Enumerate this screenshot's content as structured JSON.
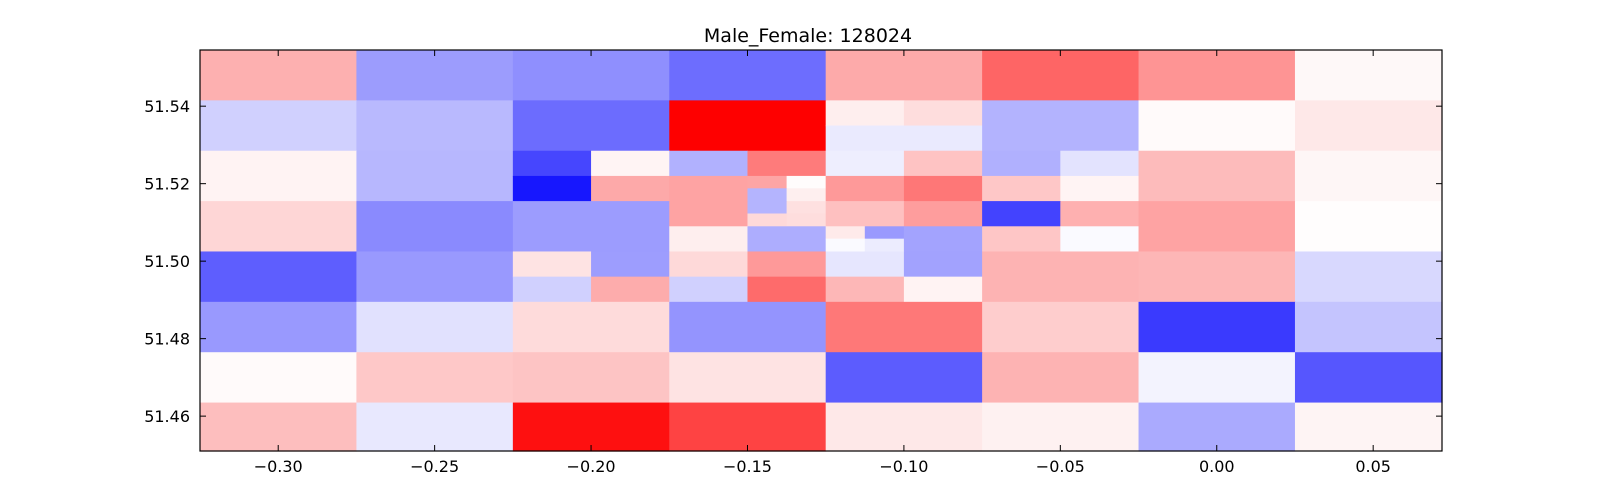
{
  "chart_data": {
    "type": "heatmap",
    "title": "Male_Female: 128024",
    "xlabel": "",
    "ylabel": "",
    "xlim": [
      -0.325,
      0.072
    ],
    "ylim": [
      51.451,
      51.5545
    ],
    "x_ticks": [
      -0.3,
      -0.25,
      -0.2,
      -0.15,
      -0.1,
      -0.05,
      0.0,
      0.05
    ],
    "x_tick_labels": [
      "−0.30",
      "−0.25",
      "−0.20",
      "−0.15",
      "−0.10",
      "−0.05",
      "0.00",
      "0.05"
    ],
    "y_ticks": [
      51.46,
      51.48,
      51.5,
      51.52,
      51.54
    ],
    "y_tick_labels": [
      "51.46",
      "51.48",
      "51.50",
      "51.52",
      "51.54"
    ],
    "colormap": "bwr",
    "cells": [
      {
        "x0": -0.325,
        "x1": -0.275,
        "y0": 51.5415,
        "y1": 51.5545,
        "color": "#fdb0b0"
      },
      {
        "x0": -0.275,
        "x1": -0.225,
        "y0": 51.5415,
        "y1": 51.5545,
        "color": "#9c9cfd"
      },
      {
        "x0": -0.225,
        "x1": -0.175,
        "y0": 51.5415,
        "y1": 51.5545,
        "color": "#8f8ffe"
      },
      {
        "x0": -0.175,
        "x1": -0.125,
        "y0": 51.5415,
        "y1": 51.5545,
        "color": "#6d6dfe"
      },
      {
        "x0": -0.125,
        "x1": -0.075,
        "y0": 51.5415,
        "y1": 51.5545,
        "color": "#fdaaaa"
      },
      {
        "x0": -0.075,
        "x1": -0.025,
        "y0": 51.5415,
        "y1": 51.5545,
        "color": "#fe6565"
      },
      {
        "x0": -0.025,
        "x1": 0.025,
        "y0": 51.5415,
        "y1": 51.5545,
        "color": "#fe9494"
      },
      {
        "x0": 0.025,
        "x1": 0.072,
        "y0": 51.5415,
        "y1": 51.5545,
        "color": "#fef8f8"
      },
      {
        "x0": -0.325,
        "x1": -0.275,
        "y0": 51.5285,
        "y1": 51.5415,
        "color": "#d0d0fe"
      },
      {
        "x0": -0.275,
        "x1": -0.225,
        "y0": 51.5285,
        "y1": 51.5415,
        "color": "#b9b9fe"
      },
      {
        "x0": -0.225,
        "x1": -0.175,
        "y0": 51.5285,
        "y1": 51.5415,
        "color": "#6c6cfe"
      },
      {
        "x0": -0.175,
        "x1": -0.125,
        "y0": 51.5285,
        "y1": 51.5415,
        "color": "#fe0000"
      },
      {
        "x0": -0.125,
        "x1": -0.1,
        "y0": 51.535,
        "y1": 51.5415,
        "color": "#feeeee"
      },
      {
        "x0": -0.1,
        "x1": -0.075,
        "y0": 51.535,
        "y1": 51.5415,
        "color": "#fedddd"
      },
      {
        "x0": -0.125,
        "x1": -0.075,
        "y0": 51.5285,
        "y1": 51.535,
        "color": "#eaeafe"
      },
      {
        "x0": -0.075,
        "x1": -0.025,
        "y0": 51.5285,
        "y1": 51.5415,
        "color": "#b3b3fe"
      },
      {
        "x0": -0.025,
        "x1": 0.025,
        "y0": 51.5285,
        "y1": 51.5415,
        "color": "#fffafa"
      },
      {
        "x0": 0.025,
        "x1": 0.072,
        "y0": 51.5285,
        "y1": 51.5415,
        "color": "#fee8e8"
      },
      {
        "x0": -0.325,
        "x1": -0.275,
        "y0": 51.5155,
        "y1": 51.5285,
        "color": "#fff3f3"
      },
      {
        "x0": -0.275,
        "x1": -0.225,
        "y0": 51.5155,
        "y1": 51.5285,
        "color": "#b7b7fe"
      },
      {
        "x0": -0.225,
        "x1": -0.2,
        "y0": 51.522,
        "y1": 51.5285,
        "color": "#4646fe"
      },
      {
        "x0": -0.2,
        "x1": -0.175,
        "y0": 51.522,
        "y1": 51.5285,
        "color": "#fff4f4"
      },
      {
        "x0": -0.225,
        "x1": -0.2,
        "y0": 51.5155,
        "y1": 51.522,
        "color": "#1717fe"
      },
      {
        "x0": -0.2,
        "x1": -0.175,
        "y0": 51.5155,
        "y1": 51.522,
        "color": "#fda9a9"
      },
      {
        "x0": -0.175,
        "x1": -0.15,
        "y0": 51.522,
        "y1": 51.5285,
        "color": "#b1b1fe"
      },
      {
        "x0": -0.15,
        "x1": -0.125,
        "y0": 51.522,
        "y1": 51.5285,
        "color": "#fe7b7b"
      },
      {
        "x0": -0.175,
        "x1": -0.15,
        "y0": 51.5155,
        "y1": 51.522,
        "color": "#fea3a3"
      },
      {
        "x0": -0.15,
        "x1": -0.1375,
        "y0": 51.5188,
        "y1": 51.522,
        "color": "#fda5a5"
      },
      {
        "x0": -0.1375,
        "x1": -0.125,
        "y0": 51.5188,
        "y1": 51.522,
        "color": "#fffcfc"
      },
      {
        "x0": -0.15,
        "x1": -0.1375,
        "y0": 51.5155,
        "y1": 51.5188,
        "color": "#b4b4fe"
      },
      {
        "x0": -0.1375,
        "x1": -0.125,
        "y0": 51.5155,
        "y1": 51.5188,
        "color": "#feefef"
      },
      {
        "x0": -0.125,
        "x1": -0.1,
        "y0": 51.522,
        "y1": 51.5285,
        "color": "#eeeefe"
      },
      {
        "x0": -0.1,
        "x1": -0.075,
        "y0": 51.522,
        "y1": 51.5285,
        "color": "#fec3c3"
      },
      {
        "x0": -0.125,
        "x1": -0.1,
        "y0": 51.5155,
        "y1": 51.522,
        "color": "#fe9999"
      },
      {
        "x0": -0.1,
        "x1": -0.075,
        "y0": 51.5155,
        "y1": 51.522,
        "color": "#fe7777"
      },
      {
        "x0": -0.075,
        "x1": -0.05,
        "y0": 51.522,
        "y1": 51.5285,
        "color": "#b0b0fe"
      },
      {
        "x0": -0.05,
        "x1": -0.025,
        "y0": 51.522,
        "y1": 51.5285,
        "color": "#e3e3fe"
      },
      {
        "x0": -0.075,
        "x1": -0.05,
        "y0": 51.5155,
        "y1": 51.522,
        "color": "#fec7c7"
      },
      {
        "x0": -0.05,
        "x1": -0.025,
        "y0": 51.5155,
        "y1": 51.522,
        "color": "#fff4f4"
      },
      {
        "x0": -0.025,
        "x1": 0.025,
        "y0": 51.5155,
        "y1": 51.5285,
        "color": "#fdbbbb"
      },
      {
        "x0": 0.025,
        "x1": 0.072,
        "y0": 51.5155,
        "y1": 51.5285,
        "color": "#fef6f6"
      },
      {
        "x0": -0.325,
        "x1": -0.275,
        "y0": 51.5025,
        "y1": 51.5155,
        "color": "#fed6d6"
      },
      {
        "x0": -0.275,
        "x1": -0.225,
        "y0": 51.5025,
        "y1": 51.5155,
        "color": "#8a8afe"
      },
      {
        "x0": -0.225,
        "x1": -0.175,
        "y0": 51.5025,
        "y1": 51.5155,
        "color": "#9c9cfe"
      },
      {
        "x0": -0.175,
        "x1": -0.15,
        "y0": 51.509,
        "y1": 51.5155,
        "color": "#fea3a3"
      },
      {
        "x0": -0.15,
        "x1": -0.1375,
        "y0": 51.5123,
        "y1": 51.5155,
        "color": "#b4b4fe"
      },
      {
        "x0": -0.1375,
        "x1": -0.125,
        "y0": 51.5123,
        "y1": 51.5155,
        "color": "#fee0e0"
      },
      {
        "x0": -0.15,
        "x1": -0.1375,
        "y0": 51.509,
        "y1": 51.5123,
        "color": "#fed9d9"
      },
      {
        "x0": -0.1375,
        "x1": -0.125,
        "y0": 51.509,
        "y1": 51.5123,
        "color": "#fedddd"
      },
      {
        "x0": -0.175,
        "x1": -0.15,
        "y0": 51.5025,
        "y1": 51.509,
        "color": "#feeeee"
      },
      {
        "x0": -0.15,
        "x1": -0.125,
        "y0": 51.5025,
        "y1": 51.509,
        "color": "#adadfe"
      },
      {
        "x0": -0.125,
        "x1": -0.1,
        "y0": 51.509,
        "y1": 51.5155,
        "color": "#fec0c0"
      },
      {
        "x0": -0.1,
        "x1": -0.075,
        "y0": 51.509,
        "y1": 51.5155,
        "color": "#fe9d9d"
      },
      {
        "x0": -0.125,
        "x1": -0.1125,
        "y0": 51.5058,
        "y1": 51.509,
        "color": "#feeaea"
      },
      {
        "x0": -0.1125,
        "x1": -0.1,
        "y0": 51.5058,
        "y1": 51.509,
        "color": "#9a9afe"
      },
      {
        "x0": -0.125,
        "x1": -0.1125,
        "y0": 51.5025,
        "y1": 51.5058,
        "color": "#fafaff"
      },
      {
        "x0": -0.1125,
        "x1": -0.1,
        "y0": 51.5025,
        "y1": 51.5058,
        "color": "#ececfe"
      },
      {
        "x0": -0.1,
        "x1": -0.075,
        "y0": 51.5025,
        "y1": 51.509,
        "color": "#a3a3fe"
      },
      {
        "x0": -0.075,
        "x1": -0.05,
        "y0": 51.509,
        "y1": 51.5155,
        "color": "#4343fe"
      },
      {
        "x0": -0.05,
        "x1": -0.025,
        "y0": 51.509,
        "y1": 51.5155,
        "color": "#feb0b0"
      },
      {
        "x0": -0.075,
        "x1": -0.05,
        "y0": 51.5025,
        "y1": 51.509,
        "color": "#fec6c6"
      },
      {
        "x0": -0.05,
        "x1": -0.025,
        "y0": 51.5025,
        "y1": 51.509,
        "color": "#fafaff"
      },
      {
        "x0": -0.025,
        "x1": 0.025,
        "y0": 51.5025,
        "y1": 51.5155,
        "color": "#fea3a3"
      },
      {
        "x0": 0.025,
        "x1": 0.072,
        "y0": 51.5025,
        "y1": 51.5155,
        "color": "#fffdfd"
      },
      {
        "x0": -0.325,
        "x1": -0.275,
        "y0": 51.4895,
        "y1": 51.5025,
        "color": "#5e5efe"
      },
      {
        "x0": -0.275,
        "x1": -0.225,
        "y0": 51.4895,
        "y1": 51.5025,
        "color": "#9999fe"
      },
      {
        "x0": -0.225,
        "x1": -0.2,
        "y0": 51.496,
        "y1": 51.5025,
        "color": "#fee3e3"
      },
      {
        "x0": -0.2,
        "x1": -0.175,
        "y0": 51.496,
        "y1": 51.5025,
        "color": "#9d9dfe"
      },
      {
        "x0": -0.225,
        "x1": -0.2,
        "y0": 51.4895,
        "y1": 51.496,
        "color": "#d0d0fe"
      },
      {
        "x0": -0.2,
        "x1": -0.175,
        "y0": 51.4895,
        "y1": 51.496,
        "color": "#fdacac"
      },
      {
        "x0": -0.175,
        "x1": -0.15,
        "y0": 51.496,
        "y1": 51.5025,
        "color": "#fed9d9"
      },
      {
        "x0": -0.15,
        "x1": -0.125,
        "y0": 51.496,
        "y1": 51.5025,
        "color": "#fe9999"
      },
      {
        "x0": -0.175,
        "x1": -0.15,
        "y0": 51.4895,
        "y1": 51.496,
        "color": "#d0d0fe"
      },
      {
        "x0": -0.15,
        "x1": -0.125,
        "y0": 51.4895,
        "y1": 51.496,
        "color": "#fe6b6b"
      },
      {
        "x0": -0.125,
        "x1": -0.1,
        "y0": 51.496,
        "y1": 51.5025,
        "color": "#e6e6fe"
      },
      {
        "x0": -0.1,
        "x1": -0.075,
        "y0": 51.496,
        "y1": 51.5025,
        "color": "#a2a2fe"
      },
      {
        "x0": -0.125,
        "x1": -0.1,
        "y0": 51.4895,
        "y1": 51.496,
        "color": "#fdb7b7"
      },
      {
        "x0": -0.1,
        "x1": -0.075,
        "y0": 51.4895,
        "y1": 51.496,
        "color": "#fff3f3"
      },
      {
        "x0": -0.075,
        "x1": -0.025,
        "y0": 51.4895,
        "y1": 51.5025,
        "color": "#fdb3b3"
      },
      {
        "x0": -0.025,
        "x1": 0.025,
        "y0": 51.4895,
        "y1": 51.5025,
        "color": "#fdb6b6"
      },
      {
        "x0": 0.025,
        "x1": 0.072,
        "y0": 51.4895,
        "y1": 51.5025,
        "color": "#d8d8fe"
      },
      {
        "x0": -0.325,
        "x1": -0.275,
        "y0": 51.4765,
        "y1": 51.4895,
        "color": "#9999fe"
      },
      {
        "x0": -0.275,
        "x1": -0.225,
        "y0": 51.4765,
        "y1": 51.4895,
        "color": "#e1e1fe"
      },
      {
        "x0": -0.225,
        "x1": -0.175,
        "y0": 51.4765,
        "y1": 51.4895,
        "color": "#fedbdb"
      },
      {
        "x0": -0.175,
        "x1": -0.125,
        "y0": 51.4765,
        "y1": 51.4895,
        "color": "#9494fe"
      },
      {
        "x0": -0.125,
        "x1": -0.075,
        "y0": 51.4765,
        "y1": 51.4895,
        "color": "#fe7878"
      },
      {
        "x0": -0.075,
        "x1": -0.025,
        "y0": 51.4765,
        "y1": 51.4895,
        "color": "#fecdcd"
      },
      {
        "x0": -0.025,
        "x1": 0.025,
        "y0": 51.4765,
        "y1": 51.4895,
        "color": "#3a3afe"
      },
      {
        "x0": 0.025,
        "x1": 0.072,
        "y0": 51.4765,
        "y1": 51.4895,
        "color": "#c4c4fe"
      },
      {
        "x0": -0.325,
        "x1": -0.275,
        "y0": 51.4635,
        "y1": 51.4765,
        "color": "#fffafa"
      },
      {
        "x0": -0.275,
        "x1": -0.225,
        "y0": 51.4635,
        "y1": 51.4765,
        "color": "#fec8c8"
      },
      {
        "x0": -0.225,
        "x1": -0.175,
        "y0": 51.4635,
        "y1": 51.4765,
        "color": "#fdc4c4"
      },
      {
        "x0": -0.175,
        "x1": -0.125,
        "y0": 51.4635,
        "y1": 51.4765,
        "color": "#fee3e3"
      },
      {
        "x0": -0.125,
        "x1": -0.075,
        "y0": 51.4635,
        "y1": 51.4765,
        "color": "#5c5cfe"
      },
      {
        "x0": -0.075,
        "x1": -0.025,
        "y0": 51.4635,
        "y1": 51.4765,
        "color": "#fdb3b3"
      },
      {
        "x0": -0.025,
        "x1": 0.025,
        "y0": 51.4635,
        "y1": 51.4765,
        "color": "#f3f3fe"
      },
      {
        "x0": 0.025,
        "x1": 0.072,
        "y0": 51.4635,
        "y1": 51.4765,
        "color": "#5656fe"
      },
      {
        "x0": -0.325,
        "x1": -0.275,
        "y0": 51.451,
        "y1": 51.4635,
        "color": "#fdbebe"
      },
      {
        "x0": -0.275,
        "x1": -0.225,
        "y0": 51.451,
        "y1": 51.4635,
        "color": "#e8e8fe"
      },
      {
        "x0": -0.225,
        "x1": -0.175,
        "y0": 51.451,
        "y1": 51.4635,
        "color": "#fe1010"
      },
      {
        "x0": -0.175,
        "x1": -0.125,
        "y0": 51.451,
        "y1": 51.4635,
        "color": "#fe4343"
      },
      {
        "x0": -0.125,
        "x1": -0.075,
        "y0": 51.451,
        "y1": 51.4635,
        "color": "#fee8e8"
      },
      {
        "x0": -0.075,
        "x1": -0.025,
        "y0": 51.451,
        "y1": 51.4635,
        "color": "#fef1f1"
      },
      {
        "x0": -0.025,
        "x1": 0.025,
        "y0": 51.451,
        "y1": 51.4635,
        "color": "#aaaafe"
      },
      {
        "x0": 0.025,
        "x1": 0.072,
        "y0": 51.451,
        "y1": 51.4635,
        "color": "#fef4f4"
      }
    ]
  }
}
